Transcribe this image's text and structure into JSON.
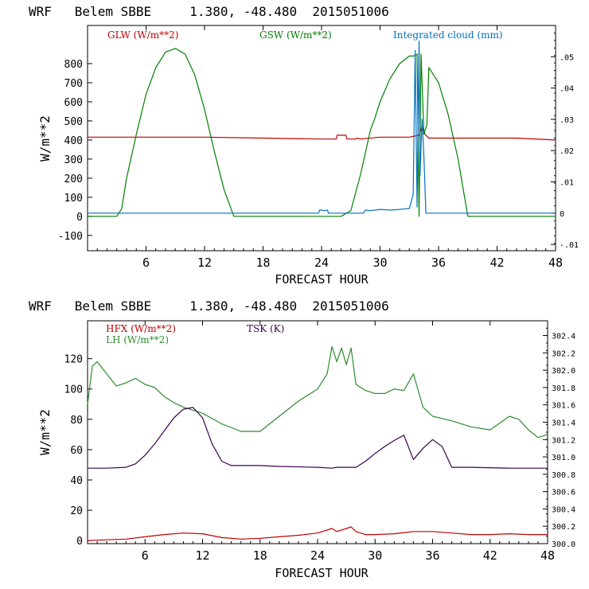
{
  "chart_data": [
    {
      "type": "line",
      "title": "WRF   Belem SBBE     1.380, -48.480  2015051006",
      "xlabel": "FORECAST HOUR",
      "ylabel": "W/m**2",
      "xlim": [
        0,
        48
      ],
      "ylim": [
        -180,
        1000
      ],
      "y2lim": [
        -0.012,
        0.06
      ],
      "x_ticks": [
        "6",
        "12",
        "18",
        "24",
        "30",
        "36",
        "42",
        "48"
      ],
      "y_ticks": [
        "-100",
        "0",
        "100",
        "200",
        "300",
        "400",
        "500",
        "600",
        "700",
        "800"
      ],
      "y2_ticks": [
        "-.01",
        "0",
        ".01",
        ".02",
        ".03",
        ".04",
        ".05"
      ],
      "series": [
        {
          "name": "GLW (W/m**2)",
          "color": "#c00000",
          "axis": "left",
          "x": [
            0,
            6,
            12,
            18,
            24,
            25.5,
            25.6,
            26.5,
            26.6,
            27.5,
            27.6,
            28,
            30,
            33,
            33.5,
            34,
            34.3,
            34.6,
            35,
            36,
            40,
            44,
            48
          ],
          "y": [
            415,
            415,
            415,
            410,
            405,
            405,
            425,
            425,
            405,
            405,
            410,
            405,
            415,
            415,
            420,
            425,
            470,
            430,
            410,
            410,
            410,
            410,
            400
          ]
        },
        {
          "name": "GSW (W/m**2)",
          "color": "#008000",
          "axis": "left",
          "x": [
            0,
            3,
            3.5,
            4,
            5,
            6,
            7,
            8,
            9,
            10,
            11,
            12,
            13,
            14,
            15,
            26,
            27,
            28,
            29,
            29.5,
            30,
            31,
            32,
            33,
            33.5,
            33.8,
            34,
            34.2,
            34.5,
            34.8,
            35,
            36,
            37,
            38,
            39,
            48
          ],
          "y": [
            0,
            0,
            40,
            200,
            430,
            640,
            780,
            860,
            880,
            850,
            740,
            560,
            340,
            140,
            0,
            0,
            30,
            220,
            450,
            520,
            600,
            720,
            800,
            840,
            840,
            850,
            0,
            850,
            430,
            480,
            780,
            700,
            530,
            300,
            0,
            0
          ]
        },
        {
          "name": "Integrated cloud (mm)",
          "color": "#0070c0",
          "axis": "right",
          "x": [
            0,
            23.7,
            23.8,
            24,
            24.3,
            24.6,
            24.7,
            28.3,
            28.5,
            29,
            30,
            31,
            32,
            33,
            33.4,
            33.6,
            33.8,
            34,
            34.1,
            34.3,
            34.5,
            34.7,
            48
          ],
          "y": [
            0,
            0,
            0.001,
            0.001,
            0.0008,
            0.001,
            0,
            0,
            0.001,
            0.0008,
            0.0012,
            0.001,
            0.0012,
            0.0015,
            0.006,
            0.052,
            0.002,
            0.055,
            0.012,
            0.03,
            0.018,
            0,
            0
          ]
        }
      ]
    },
    {
      "type": "line",
      "title": "WRF   Belem SBBE     1.380, -48.480  2015051006",
      "xlabel": "FORECAST HOUR",
      "ylabel": "W/m**2",
      "xlim": [
        0,
        48
      ],
      "ylim": [
        -2,
        145
      ],
      "y2lim": [
        300.0,
        302.57
      ],
      "x_ticks": [
        "6",
        "12",
        "18",
        "24",
        "30",
        "36",
        "42",
        "48"
      ],
      "y_ticks": [
        "0",
        "20",
        "40",
        "60",
        "80",
        "100",
        "120"
      ],
      "y2_ticks": [
        "300.0",
        "300.2",
        "300.4",
        "300.6",
        "300.8",
        "301.0",
        "301.2",
        "301.4",
        "301.6",
        "301.8",
        "302.0",
        "302.2",
        "302.4"
      ],
      "series": [
        {
          "name": "HFX (W/m**2)",
          "color": "#c00000",
          "axis": "left",
          "x": [
            0,
            2,
            4,
            6,
            8,
            10,
            12,
            14,
            16,
            18,
            20,
            22,
            24,
            25.5,
            26,
            27,
            27.5,
            28,
            29,
            30,
            32,
            34,
            36,
            38,
            40,
            42,
            44,
            46,
            48
          ],
          "y": [
            0,
            0.5,
            1,
            2.5,
            4,
            5,
            4.5,
            2,
            1,
            1.5,
            2.5,
            3.5,
            5,
            8,
            6,
            8,
            9,
            6,
            4,
            4,
            4.5,
            6,
            6,
            5,
            4,
            4,
            4.5,
            4,
            4
          ]
        },
        {
          "name": "LH (W/m**2)",
          "color": "#2e8b2e",
          "axis": "left",
          "x": [
            0,
            0.5,
            1,
            2,
            3,
            4,
            5,
            6,
            7,
            8,
            9,
            10,
            12,
            14,
            16,
            18,
            20,
            22,
            24,
            25,
            25.5,
            26,
            26.5,
            27,
            27.5,
            28,
            29,
            30,
            31,
            32,
            33,
            34,
            35,
            36,
            38,
            40,
            42,
            44,
            45,
            46,
            47,
            48
          ],
          "y": [
            90,
            115,
            118,
            110,
            102,
            104,
            107,
            103,
            101,
            95,
            91,
            88,
            84,
            77,
            72,
            72,
            82,
            92,
            100,
            110,
            128,
            118,
            127,
            116,
            127,
            103,
            99,
            97,
            97,
            100,
            99,
            110,
            88,
            82,
            79,
            75,
            73,
            82,
            80,
            73,
            68,
            70
          ]
        },
        {
          "name": "TSK (K)",
          "color": "#3a0050",
          "axis": "right",
          "x": [
            0,
            2,
            4,
            5,
            6,
            7,
            8,
            9,
            10,
            11,
            12,
            13,
            14,
            15,
            18,
            20,
            24,
            25.5,
            26,
            28,
            29,
            30,
            31,
            32,
            33,
            34,
            35,
            36,
            37,
            38,
            40,
            44,
            48
          ],
          "y": [
            300.87,
            300.87,
            300.88,
            300.92,
            301.02,
            301.15,
            301.3,
            301.45,
            301.55,
            301.57,
            301.45,
            301.15,
            300.95,
            300.9,
            300.9,
            300.89,
            300.88,
            300.87,
            300.88,
            300.88,
            300.95,
            301.04,
            301.12,
            301.19,
            301.25,
            300.97,
            301.1,
            301.2,
            301.12,
            300.88,
            300.88,
            300.87,
            300.87
          ]
        }
      ]
    }
  ]
}
